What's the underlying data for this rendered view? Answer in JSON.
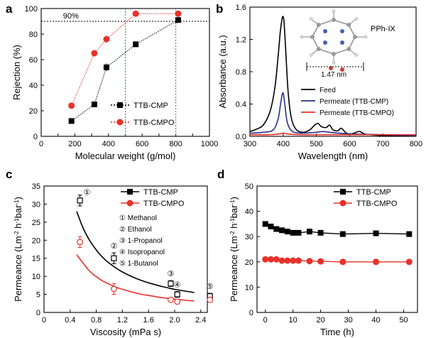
{
  "chart_data": [
    {
      "panel": "a",
      "type": "line",
      "xlabel": "Molecular weight (g/mol)",
      "ylabel": "Rejection (%)",
      "xlim": [
        0,
        1000
      ],
      "ylim": [
        0,
        100
      ],
      "xticks": [
        0,
        100,
        200,
        300,
        400,
        500,
        600,
        700,
        800,
        900,
        1000
      ],
      "xtick_labels": [
        "0",
        "",
        "200",
        "",
        "400",
        "",
        "600",
        "",
        "800",
        "",
        "1000"
      ],
      "yticks": [
        0,
        20,
        40,
        60,
        80,
        100
      ],
      "hline": {
        "y": 90,
        "label": "90%"
      },
      "vlines": [
        500,
        800
      ],
      "legend_position": "bottom-right",
      "series": [
        {
          "name": "TTB-CMP",
          "color": "#000000",
          "marker": "square",
          "x": [
            180,
            316,
            388,
            562,
            814
          ],
          "y": [
            12,
            25,
            54,
            72,
            91
          ],
          "err": [
            1.5,
            2,
            3,
            1.5,
            1.5
          ]
        },
        {
          "name": "TTB-CMPO",
          "color": "#e8312a",
          "marker": "circle",
          "x": [
            180,
            316,
            388,
            562,
            814
          ],
          "y": [
            24,
            65,
            76,
            96,
            96
          ],
          "err": [
            1.5,
            2,
            2.5,
            1,
            1
          ]
        }
      ]
    },
    {
      "panel": "b",
      "type": "line",
      "xlabel": "Wavelength (nm)",
      "ylabel": "Absorbance (a.u.)",
      "xlim": [
        300,
        800
      ],
      "ylim": [
        0,
        1.6
      ],
      "xticks": [
        300,
        400,
        500,
        600,
        700,
        800
      ],
      "ytick_labels": [
        "0.0",
        "0.4",
        "0.8",
        "1.2",
        "1.6"
      ],
      "yticks": [
        0,
        0.4,
        0.8,
        1.2,
        1.6
      ],
      "inset": {
        "label": "PPh-IX",
        "dimension": "1.47 nm"
      },
      "legend_position": "middle-right",
      "series": [
        {
          "name": "Feed",
          "color": "#000000",
          "x": [
            300,
            320,
            340,
            360,
            375,
            385,
            392,
            397,
            400,
            403,
            408,
            415,
            425,
            440,
            460,
            480,
            495,
            505,
            515,
            530,
            540,
            550,
            565,
            575,
            590,
            605,
            620,
            630,
            645,
            660,
            700,
            750,
            800
          ],
          "y": [
            0.06,
            0.09,
            0.14,
            0.3,
            0.6,
            1.0,
            1.32,
            1.46,
            1.48,
            1.4,
            1.05,
            0.55,
            0.22,
            0.08,
            0.05,
            0.08,
            0.14,
            0.16,
            0.12,
            0.11,
            0.14,
            0.08,
            0.07,
            0.1,
            0.04,
            0.03,
            0.05,
            0.06,
            0.03,
            0.02,
            0.01,
            0.01,
            0.01
          ]
        },
        {
          "name": "Permeate (TTB-CMP)",
          "color": "#2b2f8f",
          "x": [
            300,
            340,
            370,
            385,
            393,
            398,
            401,
            405,
            412,
            425,
            450,
            500,
            520,
            540,
            600,
            700,
            800
          ],
          "y": [
            0.04,
            0.05,
            0.08,
            0.22,
            0.42,
            0.53,
            0.52,
            0.4,
            0.18,
            0.07,
            0.04,
            0.05,
            0.06,
            0.05,
            0.03,
            0.02,
            0.01
          ]
        },
        {
          "name": "Permeate (TTB-CMPO)",
          "color": "#e8312a",
          "x": [
            300,
            360,
            390,
            400,
            410,
            450,
            550,
            800
          ],
          "y": [
            0.02,
            0.02,
            0.03,
            0.04,
            0.03,
            0.02,
            0.02,
            0.02
          ]
        }
      ]
    },
    {
      "panel": "c",
      "type": "scatter",
      "xlabel": "Viscosity (mPa s)",
      "ylabel": "Permeance (Lm-2 h-1 bar-1)",
      "xlim": [
        0,
        2.5
      ],
      "ylim": [
        0,
        35
      ],
      "xticks": [
        0,
        0.4,
        0.8,
        1.2,
        1.6,
        2.0,
        2.4
      ],
      "xtick_labels": [
        "0",
        "0.4",
        "0.8",
        "1.2",
        "1.6",
        "2.0",
        "2.4"
      ],
      "yticks": [
        0,
        5,
        10,
        15,
        20,
        25,
        30,
        35
      ],
      "legend_position": "top-right",
      "solvents": [
        "① Methanol",
        "② Ethanol",
        "③ 1-Propanol",
        "④ Isopropanol",
        "⑤ 1-Butanol"
      ],
      "point_labels": [
        "①",
        "②",
        "③",
        "④",
        "⑤"
      ],
      "series": [
        {
          "name": "TTB-CMP",
          "color": "#000000",
          "marker": "square-open",
          "x": [
            0.55,
            1.07,
            1.94,
            2.04,
            2.54
          ],
          "y": [
            31,
            15,
            8,
            5,
            4.5
          ],
          "err": [
            1.5,
            1.5,
            0.8,
            0.8,
            0.8
          ],
          "fit_x": [
            0.5,
            0.6,
            0.7,
            0.8,
            0.9,
            1.0,
            1.1,
            1.2,
            1.3,
            1.4,
            1.5,
            1.6,
            1.7,
            1.8,
            1.9,
            2.0,
            2.1,
            2.2,
            2.3
          ],
          "fit_y": [
            28,
            23.3,
            19.9,
            17.3,
            15.2,
            13.6,
            12.3,
            11.2,
            10.3,
            9.5,
            8.8,
            8.2,
            7.7,
            7.2,
            6.8,
            6.4,
            6.1,
            5.8,
            5.5
          ]
        },
        {
          "name": "TTB-CMPO",
          "color": "#e8312a",
          "marker": "circle-open",
          "x": [
            0.55,
            1.07,
            1.94,
            2.04,
            2.54
          ],
          "y": [
            19.5,
            6.5,
            3.5,
            3,
            3.5
          ],
          "err": [
            1.5,
            1.5,
            0.6,
            0.6,
            0.6
          ],
          "fit_x": [
            0.5,
            0.6,
            0.7,
            0.8,
            0.9,
            1.0,
            1.1,
            1.2,
            1.3,
            1.4,
            1.5,
            1.6,
            1.7,
            1.8,
            1.9,
            2.0,
            2.1,
            2.2,
            2.3
          ],
          "fit_y": [
            16,
            13.6,
            11.4,
            9.9,
            8.7,
            7.8,
            7.0,
            6.4,
            5.9,
            5.4,
            5.0,
            4.7,
            4.4,
            4.1,
            3.9,
            3.7,
            3.5,
            3.3,
            3.2
          ]
        }
      ]
    },
    {
      "panel": "d",
      "type": "line",
      "xlabel": "Time (h)",
      "ylabel": "Permeance (Lm-2 h-1 bar-1)",
      "xlim": [
        -3,
        55
      ],
      "ylim": [
        0,
        50
      ],
      "xticks": [
        0,
        10,
        20,
        30,
        40,
        50
      ],
      "yticks": [
        0,
        10,
        20,
        30,
        40,
        50
      ],
      "legend_position": "top-right",
      "series": [
        {
          "name": "TTB-CMP",
          "color": "#000000",
          "marker": "square",
          "x": [
            0,
            2,
            4,
            6,
            8,
            10,
            12,
            16,
            20,
            28,
            40,
            52
          ],
          "y": [
            35,
            34,
            33,
            32.5,
            32,
            31.5,
            31.5,
            32,
            31.5,
            31,
            31.3,
            31
          ]
        },
        {
          "name": "TTB-CMPO",
          "color": "#e8312a",
          "marker": "circle",
          "x": [
            0,
            2,
            4,
            6,
            8,
            10,
            12,
            16,
            20,
            28,
            40,
            52
          ],
          "y": [
            21,
            21,
            21,
            20.5,
            20.5,
            20.5,
            20.5,
            20.3,
            20.2,
            20,
            20,
            20
          ]
        }
      ]
    }
  ]
}
